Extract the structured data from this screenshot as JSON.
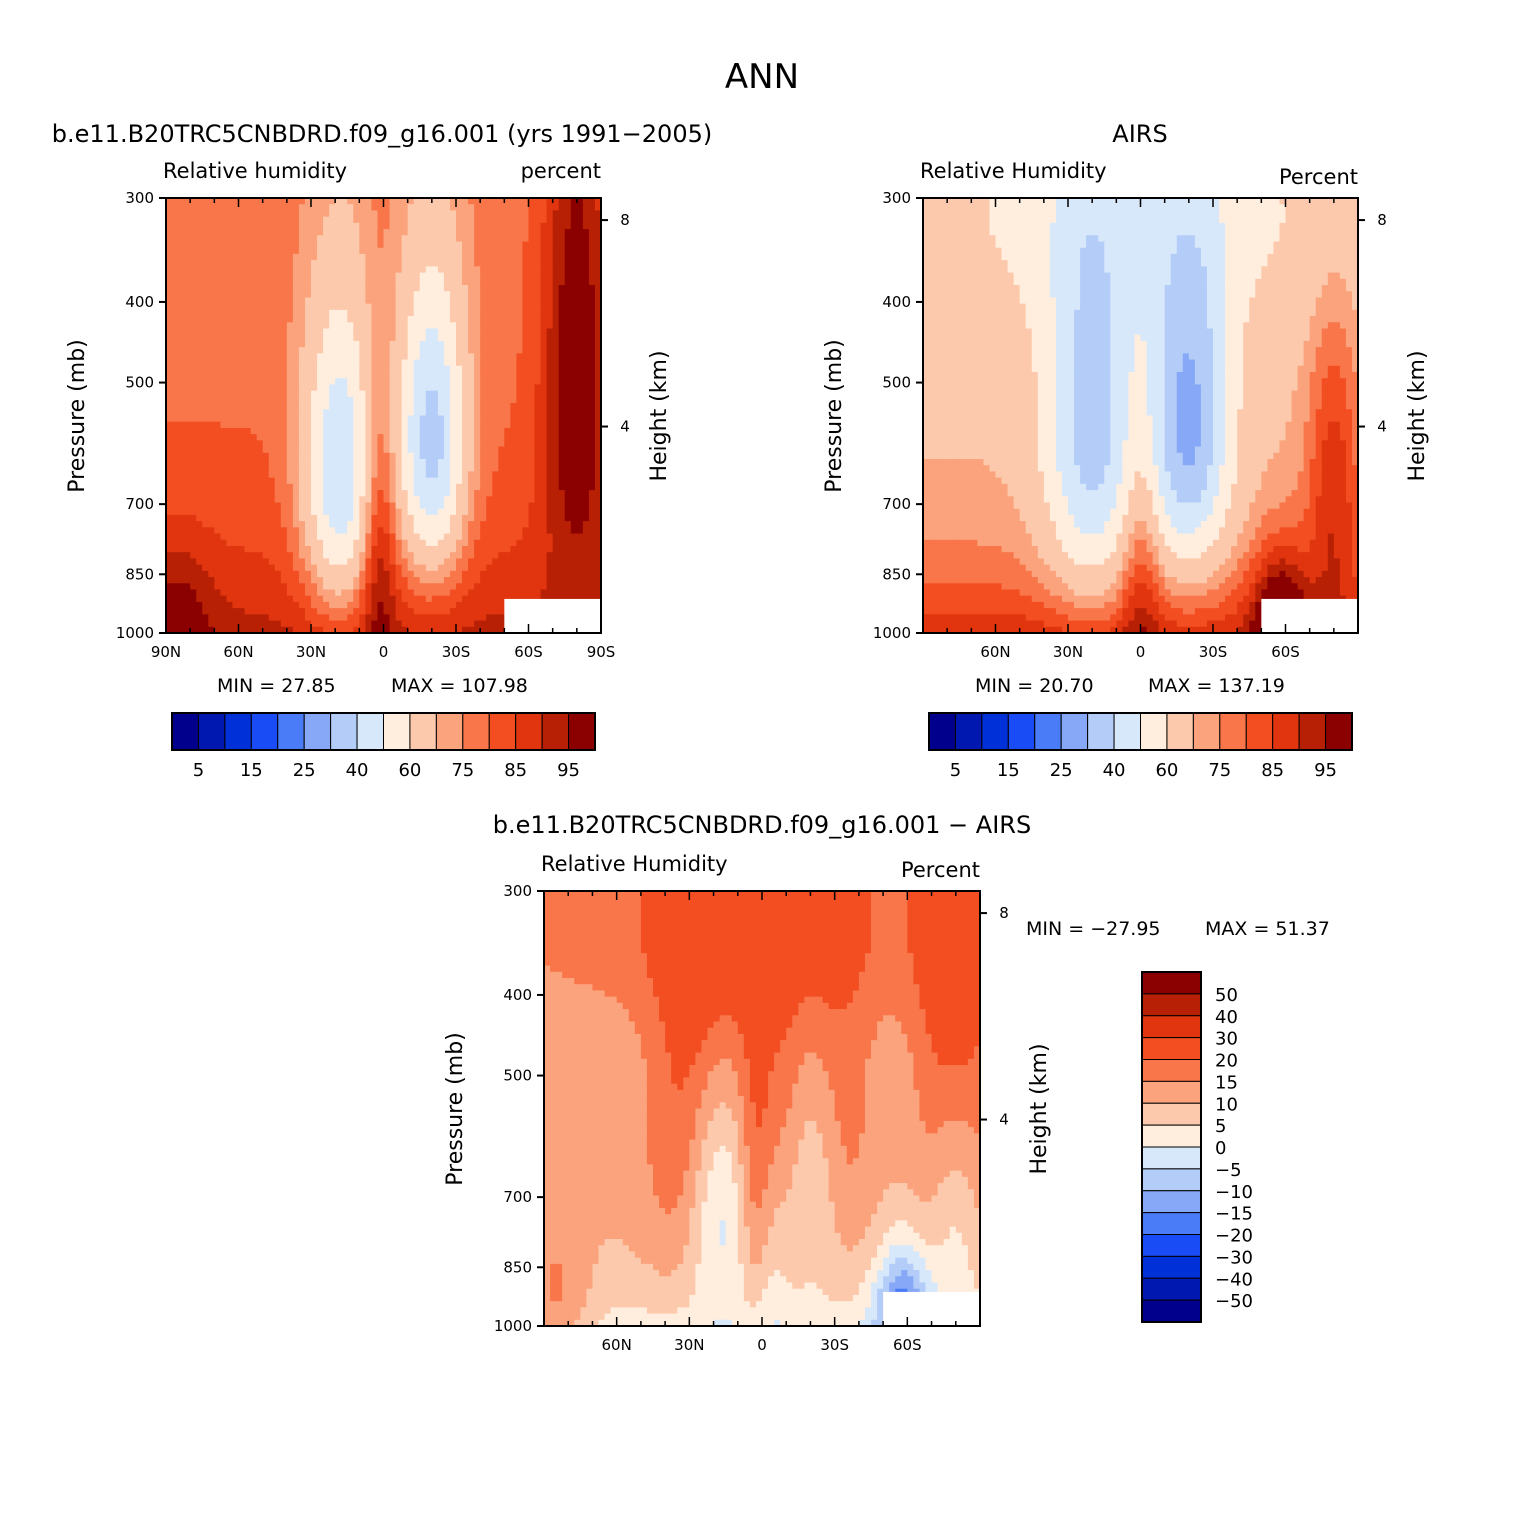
{
  "figure": {
    "title": "ANN"
  },
  "colors": {
    "rh_palette": [
      "#00008c",
      "#0018b0",
      "#0030d8",
      "#1a4cf5",
      "#4a7cf7",
      "#86a8f6",
      "#b4ccf8",
      "#d8e8fb",
      "#ffeedd",
      "#fcc9ac",
      "#faa37c",
      "#f8764a",
      "#f24e22",
      "#e0350e",
      "#b82005",
      "#8b0000"
    ],
    "diff_palette": [
      "#00008c",
      "#0018b0",
      "#0030d8",
      "#1a4cf5",
      "#4a7cf7",
      "#86a8f6",
      "#b4ccf8",
      "#d8e8fb",
      "#ffeedd",
      "#fcc9ac",
      "#faa37c",
      "#f8764a",
      "#f24e22",
      "#e0350e",
      "#b82005",
      "#8b0000"
    ]
  },
  "chart_data": [
    {
      "type": "heatmap",
      "panel": "model",
      "title": "b.e11.B20TRC5CNBDRD.f09_g16.001 (yrs 1991-2005)",
      "subtitle_left": "Relative humidity",
      "subtitle_right": "percent",
      "ylabel": "Pressure (mb)",
      "ylabel_right": "Height (km)",
      "y_ticks": [
        "300",
        "400",
        "500",
        "700",
        "850",
        "1000"
      ],
      "y_right_ticks": [
        "8",
        "4"
      ],
      "x_ticks": [
        "90N",
        "60N",
        "30N",
        "0",
        "30S",
        "60S",
        "90S"
      ],
      "xlim": [
        90,
        -90
      ],
      "ylim": [
        1000,
        300
      ],
      "min_label": "MIN = 27.85",
      "max_label": "MAX = 107.98",
      "min": 27.85,
      "max": 107.98,
      "colorbar_labels": [
        "5",
        "15",
        "25",
        "40",
        "60",
        "75",
        "85",
        "95"
      ],
      "colorbar_levels": [
        5,
        10,
        15,
        20,
        25,
        30,
        40,
        50,
        60,
        70,
        75,
        80,
        85,
        90,
        95
      ]
    },
    {
      "type": "heatmap",
      "panel": "obs",
      "title": "AIRS",
      "subtitle_left": "Relative Humidity",
      "subtitle_right": "Percent",
      "ylabel": "Pressure (mb)",
      "ylabel_right": "Height (km)",
      "y_ticks": [
        "300",
        "400",
        "500",
        "700",
        "850",
        "1000"
      ],
      "y_right_ticks": [
        "8",
        "4"
      ],
      "x_ticks": [
        "60N",
        "30N",
        "0",
        "30S",
        "60S"
      ],
      "xlim": [
        90,
        -90
      ],
      "ylim": [
        1000,
        300
      ],
      "min_label": "MIN = 20.70",
      "max_label": "MAX = 137.19",
      "min": 20.7,
      "max": 137.19,
      "colorbar_labels": [
        "5",
        "15",
        "25",
        "40",
        "60",
        "75",
        "85",
        "95"
      ],
      "colorbar_levels": [
        5,
        10,
        15,
        20,
        25,
        30,
        40,
        50,
        60,
        70,
        75,
        80,
        85,
        90,
        95
      ]
    },
    {
      "type": "heatmap",
      "panel": "diff",
      "title": "b.e11.B20TRC5CNBDRD.f09_g16.001 - AIRS",
      "subtitle_left": "Relative Humidity",
      "subtitle_right": "Percent",
      "ylabel": "Pressure (mb)",
      "ylabel_right": "Height (km)",
      "y_ticks": [
        "300",
        "400",
        "500",
        "700",
        "850",
        "1000"
      ],
      "y_right_ticks": [
        "8",
        "4"
      ],
      "x_ticks": [
        "60N",
        "30N",
        "0",
        "30S",
        "60S"
      ],
      "xlim": [
        90,
        -90
      ],
      "ylim": [
        1000,
        300
      ],
      "min_label": "MIN = -27.95",
      "max_label": "MAX = 51.37",
      "min": -27.95,
      "max": 51.37,
      "colorbar_labels": [
        "50",
        "40",
        "30",
        "20",
        "15",
        "10",
        "5",
        "0",
        "-5",
        "-10",
        "-15",
        "-20",
        "-30",
        "-40",
        "-50"
      ],
      "colorbar_levels": [
        -50,
        -40,
        -30,
        -20,
        -15,
        -10,
        -5,
        0,
        5,
        10,
        15,
        20,
        30,
        40,
        50
      ]
    }
  ]
}
